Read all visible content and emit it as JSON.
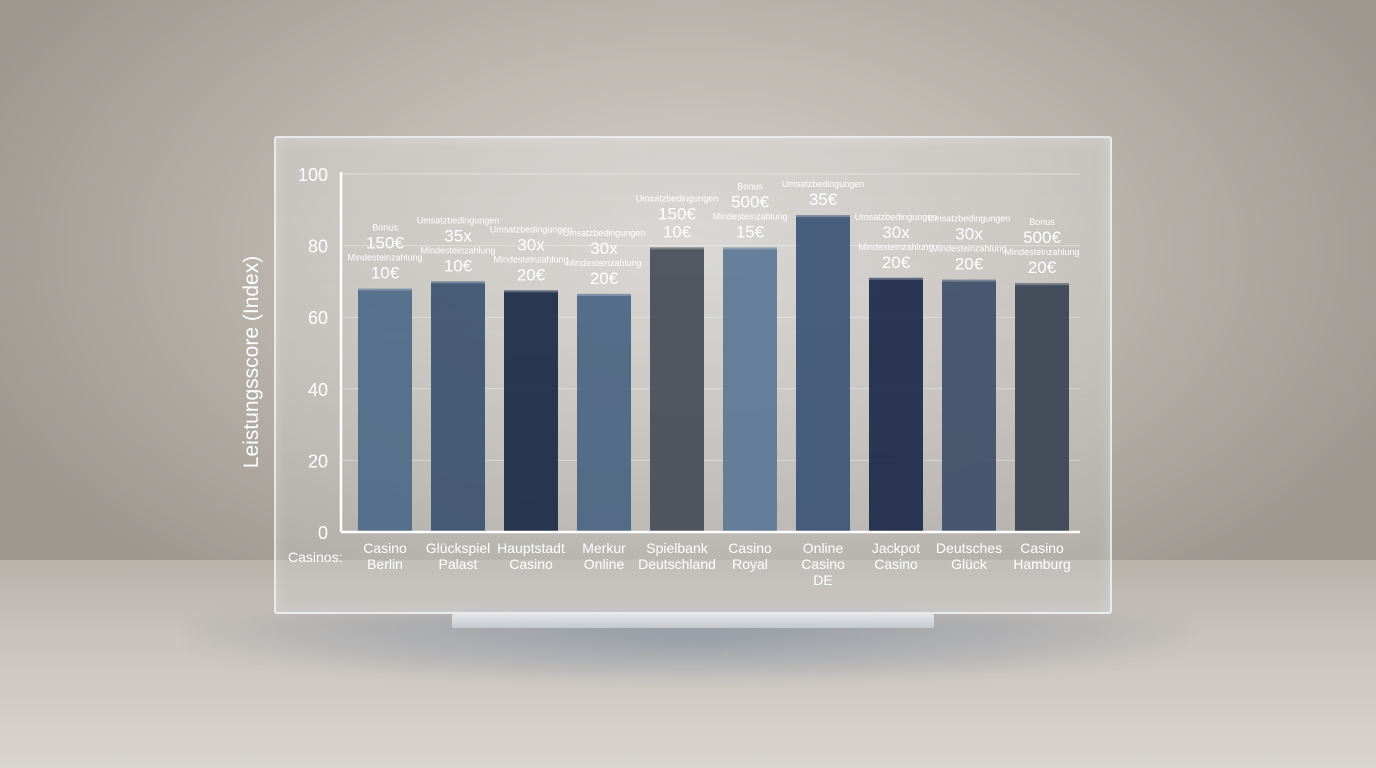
{
  "chart_data": {
    "type": "bar",
    "ylabel": "Leistungsscore (Index)",
    "xlabel": "Casinos:",
    "ylim": [
      0,
      100
    ],
    "yticks": [
      "0",
      "20",
      "40",
      "60",
      "80",
      "100"
    ],
    "grid": true,
    "categories": [
      [
        "Casino",
        "Berlin"
      ],
      [
        "Glückspiel",
        "Palast"
      ],
      [
        "Hauptstadt",
        "Casino"
      ],
      [
        "Merkur",
        "Online"
      ],
      [
        "Spielbank",
        "Deutschland"
      ],
      [
        "Casino",
        "Royal"
      ],
      [
        "Online",
        "Casino",
        "DE"
      ],
      [
        "Jackpot",
        "Casino"
      ],
      [
        "Deutsches",
        "Glück"
      ],
      [
        "Casino",
        "Hamburg"
      ]
    ],
    "values": [
      68,
      70,
      67.5,
      66.5,
      79.5,
      79.5,
      88.5,
      71,
      70.5,
      69.5
    ],
    "colors": [
      "#4f6a88",
      "#3c5370",
      "#1c2b47",
      "#4a6582",
      "#474e58",
      "#5d7897",
      "#3c5575",
      "#1d2a48",
      "#3e5069",
      "#3a4553"
    ],
    "annotations": [
      [
        [
          "s",
          "Bonus"
        ],
        [
          "b",
          "150€"
        ],
        [
          "s",
          "Mindesteinzahlung"
        ],
        [
          "b",
          "10€"
        ]
      ],
      [
        [
          "s",
          "Umsatzbedingungen"
        ],
        [
          "b",
          "35x"
        ],
        [
          "s",
          "Mindesteinzahlung"
        ],
        [
          "b",
          "10€"
        ]
      ],
      [
        [
          "s",
          "Umsatzbedingungen"
        ],
        [
          "b",
          "30x"
        ],
        [
          "s",
          "Mindesteinzahlung"
        ],
        [
          "b",
          "20€"
        ]
      ],
      [
        [
          "s",
          "Umsatzbedingungen"
        ],
        [
          "b",
          "30x"
        ],
        [
          "s",
          "Mindesteinzahlung"
        ],
        [
          "b",
          "20€"
        ]
      ],
      [
        [
          "s",
          "Umsatzbedingungen"
        ],
        [
          "b",
          "150€"
        ],
        [
          "b",
          "10€"
        ]
      ],
      [
        [
          "s",
          "Bonus"
        ],
        [
          "b",
          "500€"
        ],
        [
          "s",
          "Mindesteinzahlung"
        ],
        [
          "b",
          "15€"
        ]
      ],
      [
        [
          "s",
          "Umsatzbedingungen"
        ],
        [
          "b",
          "35€"
        ]
      ],
      [
        [
          "s",
          "Umsatzbedingungen"
        ],
        [
          "b",
          "30x"
        ],
        [
          "s",
          "Mindesteinzahlung"
        ],
        [
          "b",
          "20€"
        ]
      ],
      [
        [
          "s",
          "Umsatzbedingungen"
        ],
        [
          "b",
          "30x"
        ],
        [
          "s",
          "Mindesteinzahlung"
        ],
        [
          "b",
          "20€"
        ]
      ],
      [
        [
          "s",
          "Bonus"
        ],
        [
          "b",
          "500€"
        ],
        [
          "s",
          "Mindesteinzahlung"
        ],
        [
          "b",
          "20€"
        ]
      ]
    ]
  }
}
